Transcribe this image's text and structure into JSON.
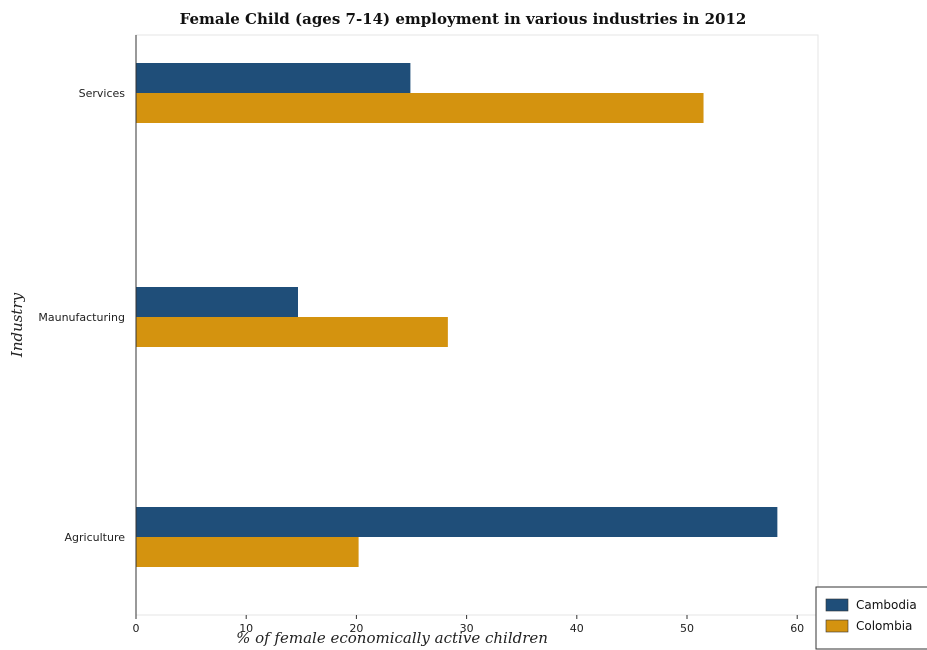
{
  "chart_data": {
    "type": "bar",
    "orientation": "horizontal",
    "title": "Female Child (ages 7-14) employment in various industries in 2012",
    "xlabel": "% of female economically active children",
    "ylabel": "Industry",
    "categories": [
      "Agriculture",
      "Maunufacturing",
      "Services"
    ],
    "series": [
      {
        "name": "Cambodia",
        "values": [
          58.2,
          14.7,
          24.9
        ],
        "color": "#1f4e79"
      },
      {
        "name": "Colombia",
        "values": [
          20.2,
          28.3,
          51.5
        ],
        "color": "#d4930f"
      }
    ],
    "xlim": [
      0,
      62
    ],
    "xticks": [
      0,
      10,
      20,
      30,
      40,
      50,
      60
    ],
    "grid": false,
    "legend_position": "bottom-right"
  }
}
